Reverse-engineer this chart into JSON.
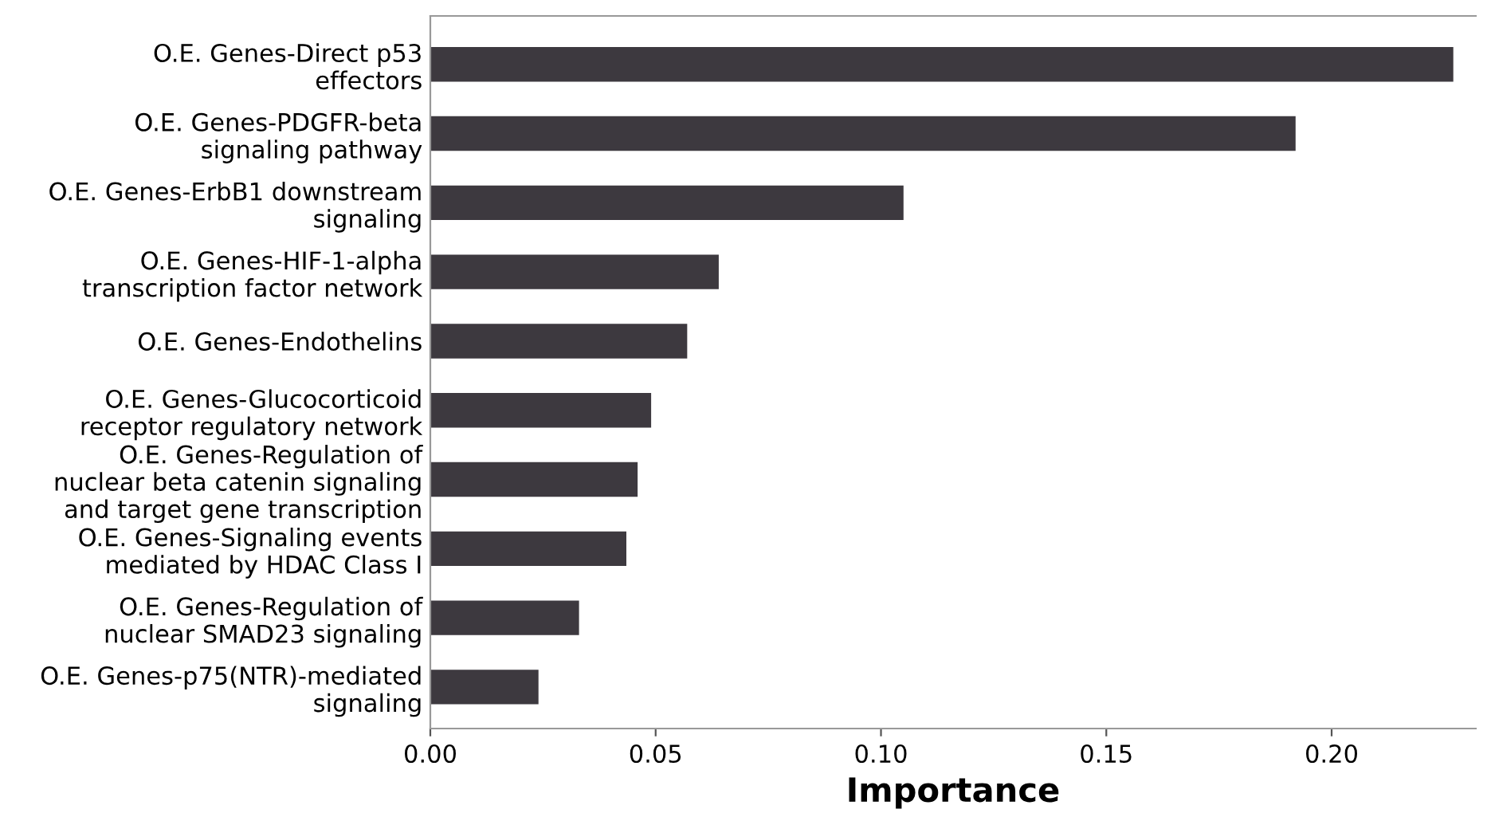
{
  "chart_data": {
    "type": "bar",
    "orientation": "horizontal",
    "xlabel": "Importance",
    "categories": [
      "O.E. Genes-Direct p53\neffectors",
      "O.E. Genes-PDGFR-beta\nsignaling pathway",
      "O.E. Genes-ErbB1 downstream\nsignaling",
      "O.E. Genes-HIF-1-alpha\ntranscription factor network",
      "O.E. Genes-Endothelins",
      "O.E. Genes-Glucocorticoid\nreceptor regulatory network",
      "O.E. Genes-Regulation of\nnuclear beta catenin signaling\nand target gene transcription",
      "O.E. Genes-Signaling events\nmediated by HDAC Class I",
      "O.E. Genes-Regulation of\nnuclear SMAD23 signaling",
      "O.E. Genes-p75(NTR)-mediated\nsignaling"
    ],
    "values": [
      0.227,
      0.192,
      0.105,
      0.064,
      0.057,
      0.049,
      0.046,
      0.0435,
      0.033,
      0.024
    ],
    "color": "#3d393f",
    "xlim": [
      0,
      0.232
    ],
    "xticks": [
      {
        "value": 0,
        "label": "0.00"
      },
      {
        "value": 0.05,
        "label": "0.05"
      },
      {
        "value": 0.1,
        "label": "0.10"
      },
      {
        "value": 0.15,
        "label": "0.15"
      },
      {
        "value": 0.2,
        "label": "0.20"
      }
    ],
    "grid": false,
    "legend": false
  }
}
